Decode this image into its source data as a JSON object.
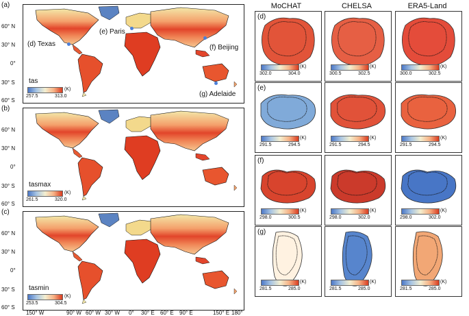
{
  "left_maps": [
    {
      "label": "(a)",
      "var": "tas",
      "min": "257.5",
      "max": "313.0",
      "unit": "(K)"
    },
    {
      "label": "(b)",
      "var": "tasmax",
      "min": "261.5",
      "max": "320.0",
      "unit": "(K)"
    },
    {
      "label": "(c)",
      "var": "tasmin",
      "min": "253.5",
      "max": "304.5",
      "unit": "(K)"
    }
  ],
  "lat_ticks": [
    "60° N",
    "30° N",
    "0°",
    "30° S",
    "60° S"
  ],
  "lon_ticks": [
    "150° W",
    "90° W",
    "60° W",
    "30° W",
    "0°",
    "30° E",
    "60° E",
    "90° E",
    "150° E",
    "180°"
  ],
  "sites": {
    "texas": "(d) Texas",
    "paris": "(e) Paris",
    "beijing": "(f) Beijing",
    "adelaide": "(g) Adelaide"
  },
  "columns": [
    "MoCHAT",
    "CHELSA",
    "ERA5-Land"
  ],
  "rows": [
    {
      "label": "(d)",
      "ranges": [
        [
          "302.0",
          "304.0"
        ],
        [
          "300.5",
          "302.5"
        ],
        [
          "300.0",
          "302.5"
        ]
      ]
    },
    {
      "label": "(e)",
      "ranges": [
        [
          "291.5",
          "294.5"
        ],
        [
          "291.5",
          "294.5"
        ],
        [
          "291.5",
          "294.5"
        ]
      ]
    },
    {
      "label": "(f)",
      "ranges": [
        [
          "298.0",
          "300.5"
        ],
        [
          "298.0",
          "302.0"
        ],
        [
          "298.0",
          "302.0"
        ]
      ]
    },
    {
      "label": "(g)",
      "ranges": [
        [
          "281.5",
          "285.0"
        ],
        [
          "281.5",
          "285.0"
        ],
        [
          "281.5",
          "285.0"
        ]
      ]
    }
  ],
  "unit": "(K)",
  "colors": {
    "cold": "#4c78c7",
    "mid": "#f4efd0",
    "hot": "#d93b1f",
    "site": "#4b7fd9"
  }
}
